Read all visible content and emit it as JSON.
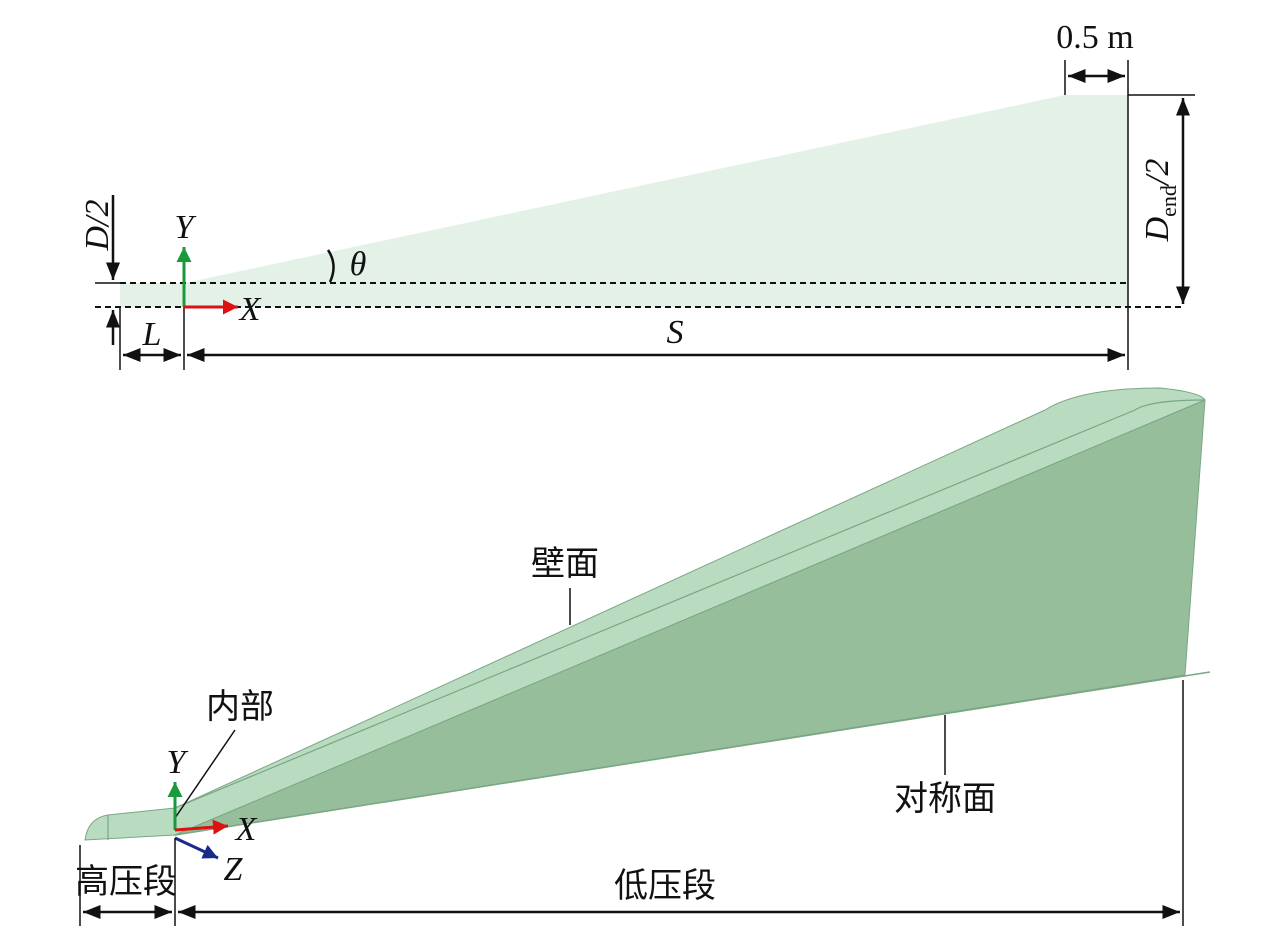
{
  "top": {
    "dimensions": {
      "width_end": "0.5 m",
      "half_d": "D/2",
      "half_d_end": {
        "symbol": "D",
        "subscript": "end",
        "suffix": "/2"
      },
      "length_l": "L",
      "length_s": "S",
      "angle": "θ"
    },
    "axes": {
      "y": "Y",
      "x": "X"
    }
  },
  "bottom": {
    "labels": {
      "wall": "壁面",
      "interior": "内部",
      "symmetry": "对称面",
      "high_pressure": "高压段",
      "low_pressure": "低压段"
    },
    "axes": {
      "y": "Y",
      "x": "X",
      "z": "Z"
    }
  }
}
